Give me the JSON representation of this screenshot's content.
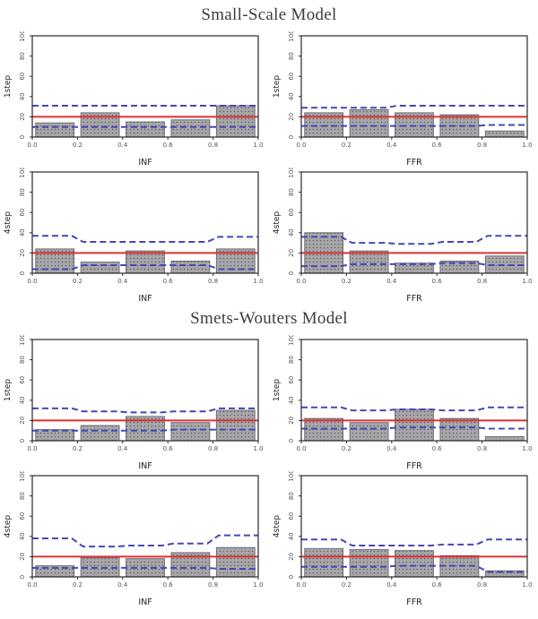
{
  "sections": [
    {
      "title": "Small-Scale Model"
    },
    {
      "title": "Smets-Wouters Model"
    }
  ],
  "axes": {
    "x_ticks": [
      "0.0",
      "0.2",
      "0.4",
      "0.6",
      "0.8",
      "1.0"
    ],
    "y_ticks": [
      "0",
      "20",
      "40",
      "60",
      "80",
      "100"
    ],
    "xlim": [
      0,
      1
    ],
    "ylim": [
      0,
      100
    ]
  },
  "colors": {
    "bar_fill": "#a7a7a7",
    "bar_dot": "#5e5e78",
    "bar_edge": "#70707a",
    "red_line": "#e03030",
    "blue_dashed": "#4747b6",
    "axis_frame": "#2a2a2a",
    "tick_text": "#555555",
    "label_text": "#222222"
  },
  "chart_data": [
    {
      "type": "bar",
      "section": "Small-Scale Model",
      "ylabel": "1step",
      "xlabel": "INF",
      "categories": [
        0.1,
        0.3,
        0.5,
        0.7,
        0.9
      ],
      "values": [
        14,
        24,
        15,
        17,
        31
      ],
      "red_line": 20,
      "upper_band": [
        31,
        31,
        31,
        31,
        31
      ],
      "lower_band": [
        10,
        10,
        10,
        10,
        10
      ],
      "xlim": [
        0,
        1
      ],
      "ylim": [
        0,
        100
      ]
    },
    {
      "type": "bar",
      "section": "Small-Scale Model",
      "ylabel": "1step",
      "xlabel": "FFR",
      "categories": [
        0.1,
        0.3,
        0.5,
        0.7,
        0.9
      ],
      "values": [
        24,
        27,
        24,
        22,
        6
      ],
      "red_line": 20,
      "upper_band": [
        29,
        29,
        31,
        31,
        31
      ],
      "lower_band": [
        11,
        11,
        11,
        11,
        12
      ],
      "xlim": [
        0,
        1
      ],
      "ylim": [
        0,
        100
      ]
    },
    {
      "type": "bar",
      "section": "Small-Scale Model",
      "ylabel": "4step",
      "xlabel": "INF",
      "categories": [
        0.1,
        0.3,
        0.5,
        0.7,
        0.9
      ],
      "values": [
        24,
        11,
        22,
        12,
        24
      ],
      "red_line": 20,
      "upper_band": [
        37,
        31,
        31,
        31,
        36
      ],
      "lower_band": [
        4,
        8,
        8,
        8,
        4
      ],
      "xlim": [
        0,
        1
      ],
      "ylim": [
        0,
        100
      ]
    },
    {
      "type": "bar",
      "section": "Small-Scale Model",
      "ylabel": "4step",
      "xlabel": "FFR",
      "categories": [
        0.1,
        0.3,
        0.5,
        0.7,
        0.9
      ],
      "values": [
        40,
        22,
        10,
        12,
        17
      ],
      "red_line": 20,
      "upper_band": [
        36,
        30,
        29,
        31,
        37
      ],
      "lower_band": [
        7,
        9,
        9,
        10,
        8
      ],
      "xlim": [
        0,
        1
      ],
      "ylim": [
        0,
        100
      ]
    },
    {
      "type": "bar",
      "section": "Smets-Wouters Model",
      "ylabel": "1step",
      "xlabel": "INF",
      "categories": [
        0.1,
        0.3,
        0.5,
        0.7,
        0.9
      ],
      "values": [
        11,
        15,
        24,
        18,
        30
      ],
      "red_line": 20,
      "upper_band": [
        32,
        29,
        28,
        29,
        32
      ],
      "lower_band": [
        10,
        10,
        10,
        11,
        11
      ],
      "xlim": [
        0,
        1
      ],
      "ylim": [
        0,
        100
      ]
    },
    {
      "type": "bar",
      "section": "Smets-Wouters Model",
      "ylabel": "1step",
      "xlabel": "FFR",
      "categories": [
        0.1,
        0.3,
        0.5,
        0.7,
        0.9
      ],
      "values": [
        22,
        18,
        31,
        22,
        4
      ],
      "red_line": 20,
      "upper_band": [
        33,
        30,
        31,
        30,
        33
      ],
      "lower_band": [
        12,
        12,
        13,
        13,
        12
      ],
      "xlim": [
        0,
        1
      ],
      "ylim": [
        0,
        100
      ]
    },
    {
      "type": "bar",
      "section": "Smets-Wouters Model",
      "ylabel": "4step",
      "xlabel": "INF",
      "categories": [
        0.1,
        0.3,
        0.5,
        0.7,
        0.9
      ],
      "values": [
        11,
        19,
        18,
        24,
        29
      ],
      "red_line": 20,
      "upper_band": [
        38,
        30,
        31,
        33,
        41
      ],
      "lower_band": [
        9,
        9,
        9,
        9,
        8
      ],
      "xlim": [
        0,
        1
      ],
      "ylim": [
        0,
        100
      ]
    },
    {
      "type": "bar",
      "section": "Smets-Wouters Model",
      "ylabel": "4step",
      "xlabel": "FFR",
      "categories": [
        0.1,
        0.3,
        0.5,
        0.7,
        0.9
      ],
      "values": [
        28,
        27,
        26,
        21,
        6
      ],
      "red_line": 20,
      "upper_band": [
        37,
        31,
        31,
        32,
        37
      ],
      "lower_band": [
        10,
        10,
        11,
        11,
        5
      ],
      "xlim": [
        0,
        1
      ],
      "ylim": [
        0,
        100
      ]
    }
  ]
}
